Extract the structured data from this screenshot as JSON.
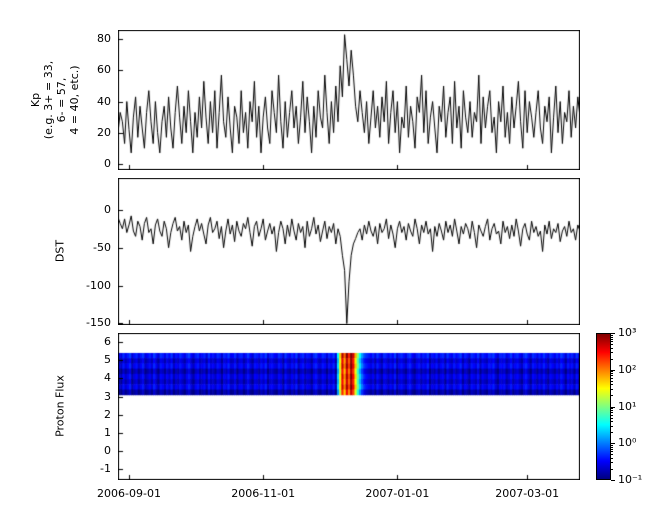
{
  "figure": {
    "background": "#ffffff",
    "frame_color": "#000000",
    "line_color": "#000000",
    "font_color": "#000000"
  },
  "x_axis": {
    "tick_labels": [
      "2006-09-01",
      "2006-11-01",
      "2007-01-01",
      "2007-03-01"
    ],
    "tick_days": [
      5,
      66,
      127,
      186
    ],
    "range_days": [
      0,
      210
    ]
  },
  "chart_data": [
    {
      "id": "kp",
      "type": "line",
      "ylabel": "Kp\n(e.g. 3+ = 33,\n6- = 57,\n4 = 40, etc.)",
      "yticks": [
        0,
        20,
        40,
        60,
        80
      ],
      "ylim": [
        -4,
        86
      ],
      "line_color": "#000000",
      "values": [
        20,
        33,
        27,
        13,
        40,
        22,
        7,
        30,
        43,
        17,
        37,
        23,
        10,
        33,
        47,
        27,
        13,
        40,
        20,
        7,
        27,
        37,
        17,
        43,
        23,
        10,
        33,
        50,
        30,
        13,
        37,
        20,
        47,
        27,
        7,
        33,
        17,
        43,
        23,
        53,
        30,
        13,
        40,
        20,
        47,
        10,
        33,
        57,
        27,
        17,
        43,
        23,
        7,
        37,
        30,
        13,
        47,
        20,
        33,
        10,
        40,
        27,
        53,
        17,
        37,
        7,
        30,
        43,
        23,
        13,
        47,
        33,
        20,
        57,
        27,
        10,
        40,
        17,
        33,
        47,
        23,
        37,
        13,
        30,
        53,
        20,
        43,
        27,
        7,
        37,
        17,
        47,
        30,
        23,
        57,
        33,
        13,
        40,
        20,
        50,
        27,
        63,
        43,
        83,
        67,
        50,
        73,
        57,
        37,
        27,
        47,
        33,
        20,
        40,
        13,
        30,
        47,
        23,
        37,
        17,
        43,
        27,
        53,
        13,
        33,
        47,
        20,
        40,
        7,
        30,
        23,
        50,
        17,
        37,
        27,
        10,
        43,
        33,
        57,
        20,
        47,
        13,
        30,
        40,
        23,
        7,
        37,
        27,
        50,
        17,
        33,
        43,
        13,
        53,
        23,
        37,
        10,
        47,
        30,
        20,
        40,
        17,
        33,
        27,
        57,
        13,
        43,
        23,
        37,
        47,
        20,
        30,
        7,
        40,
        27,
        50,
        17,
        33,
        13,
        43,
        23,
        37,
        53,
        27,
        10,
        47,
        20,
        40,
        30,
        17,
        33,
        47,
        23,
        13,
        37,
        27,
        43,
        7,
        30,
        50,
        20,
        40,
        13,
        33,
        27,
        47,
        17,
        37,
        23,
        43,
        30
      ]
    },
    {
      "id": "dst",
      "type": "line",
      "ylabel": "DST",
      "yticks": [
        0,
        -50,
        -100,
        -150
      ],
      "ylim": [
        -152,
        42
      ],
      "line_color": "#000000",
      "values": [
        -10,
        -18,
        -25,
        -12,
        -30,
        -20,
        -8,
        -28,
        -35,
        -15,
        -22,
        -40,
        -18,
        -10,
        -30,
        -25,
        -45,
        -20,
        -12,
        -28,
        -35,
        -15,
        -25,
        -50,
        -30,
        -18,
        -10,
        -28,
        -22,
        -40,
        -15,
        -30,
        -20,
        -55,
        -35,
        -22,
        -12,
        -28,
        -18,
        -32,
        -45,
        -20,
        -10,
        -30,
        -25,
        -15,
        -38,
        -22,
        -50,
        -28,
        -12,
        -32,
        -20,
        -42,
        -15,
        -28,
        -35,
        -18,
        -25,
        -10,
        -30,
        -48,
        -22,
        -15,
        -35,
        -25,
        -12,
        -40,
        -28,
        -18,
        -32,
        -22,
        -55,
        -30,
        -15,
        -25,
        -45,
        -20,
        -35,
        -12,
        -28,
        -40,
        -18,
        -30,
        -22,
        -50,
        -15,
        -35,
        -25,
        -10,
        -32,
        -20,
        -42,
        -28,
        -15,
        -38,
        -22,
        -30,
        -18,
        -45,
        -25,
        -35,
        -60,
        -80,
        -150,
        -95,
        -60,
        -45,
        -38,
        -30,
        -25,
        -40,
        -20,
        -32,
        -15,
        -28,
        -35,
        -22,
        -45,
        -18,
        -30,
        -25,
        -12,
        -38,
        -20,
        -32,
        -50,
        -25,
        -15,
        -30,
        -22,
        -40,
        -18,
        -28,
        -35,
        -12,
        -25,
        -45,
        -20,
        -30,
        -15,
        -32,
        -25,
        -55,
        -22,
        -35,
        -18,
        -28,
        -40,
        -15,
        -30,
        -20,
        -35,
        -12,
        -28,
        -45,
        -22,
        -32,
        -18,
        -25,
        -38,
        -15,
        -30,
        -50,
        -20,
        -28,
        -35,
        -22,
        -12,
        -40,
        -25,
        -18,
        -32,
        -28,
        -45,
        -15,
        -30,
        -22,
        -38,
        -20,
        -35,
        -12,
        -28,
        -48,
        -25,
        -18,
        -32,
        -40,
        -15,
        -30,
        -22,
        -35,
        -28,
        -55,
        -20,
        -32,
        -15,
        -38,
        -25,
        -30,
        -18,
        -42,
        -28,
        -22,
        -35,
        -15,
        -30,
        -25,
        -40,
        -20,
        -28
      ]
    },
    {
      "id": "proton_flux",
      "type": "heatmap",
      "ylabel": "Proton Flux",
      "yticks": [
        6,
        5,
        4,
        3,
        2,
        1,
        0,
        -1
      ],
      "ylim": [
        -1.6,
        6.5
      ],
      "band_y_range": [
        3.1,
        5.4
      ],
      "channel_multipliers": [
        1.6,
        0.9,
        1.3,
        0.7,
        1.1,
        0.8,
        1.2,
        0.6
      ],
      "values": [
        0.2,
        0.15,
        0.3,
        0.18,
        0.25,
        0.35,
        0.14,
        0.22,
        0.28,
        0.16,
        0.24,
        0.32,
        0.15,
        0.2,
        0.27,
        0.18,
        0.35,
        0.22,
        0.14,
        0.3,
        0.25,
        0.17,
        0.28,
        0.2,
        0.33,
        0.15,
        0.24,
        0.19,
        0.3,
        0.22,
        0.16,
        0.27,
        0.35,
        0.2,
        0.14,
        0.25,
        0.3,
        0.18,
        0.22,
        0.28,
        0.15,
        0.33,
        0.2,
        0.24,
        0.17,
        0.3,
        0.25,
        0.14,
        0.28,
        0.22,
        0.35,
        0.18,
        0.2,
        0.3,
        0.15,
        0.25,
        0.27,
        0.16,
        0.22,
        0.33,
        0.2,
        0.14,
        0.28,
        0.25,
        0.18,
        0.3,
        0.22,
        0.35,
        0.15,
        0.24,
        0.27,
        0.2,
        0.17,
        0.3,
        0.25,
        0.14,
        0.33,
        0.22,
        0.18,
        0.28,
        0.2,
        0.35,
        0.15,
        0.24,
        0.3,
        0.17,
        0.25,
        0.22,
        0.14,
        0.28,
        0.33,
        0.2,
        0.18,
        0.3,
        0.25,
        0.15,
        0.27,
        0.22,
        0.35,
        0.16,
        2,
        30,
        400,
        80,
        600,
        150,
        900,
        300,
        40,
        8,
        2,
        0.8,
        0.4,
        0.3,
        0.25,
        0.2,
        0.28,
        0.16,
        0.33,
        0.22,
        0.15,
        0.3,
        0.25,
        0.18,
        0.27,
        0.2,
        0.35,
        0.14,
        0.24,
        0.3,
        0.22,
        0.16,
        0.28,
        0.33,
        0.2,
        0.15,
        0.25,
        0.3,
        0.18,
        0.27,
        0.22,
        0.35,
        0.14,
        0.24,
        0.2,
        0.3,
        0.17,
        0.25,
        0.28,
        0.15,
        0.33,
        0.22,
        0.18,
        0.3,
        0.2,
        0.25,
        0.35,
        0.16,
        0.27,
        0.22,
        0.14,
        0.3,
        0.25,
        0.2,
        0.33,
        0.15,
        0.28,
        0.22,
        0.18,
        0.3,
        0.25,
        0.35,
        0.2,
        0.14,
        0.27,
        0.24,
        0.3,
        0.16,
        0.22,
        0.33,
        0.18,
        0.25,
        0.3,
        0.2,
        0.15,
        0.28,
        0.35,
        0.22,
        0.14,
        0.3,
        0.25,
        0.17,
        0.27,
        0.2,
        0.33,
        0.22,
        0.15,
        0.3,
        0.24,
        0.18,
        0.28,
        0.2,
        0.35,
        0.25,
        0.14,
        0.3,
        0.22,
        0.27,
        0.16,
        0.33,
        0.2
      ],
      "colorbar": {
        "scale": "log",
        "range": [
          0.1,
          1000
        ],
        "tick_labels": [
          "10³",
          "10²",
          "10¹",
          "10⁰",
          "10⁻¹"
        ],
        "tick_values": [
          1000,
          100,
          10,
          1,
          0.1
        ],
        "colormap": "jet",
        "colormap_stops": [
          {
            "t": 0,
            "color": "#00007f"
          },
          {
            "t": 0.125,
            "color": "#0000ff"
          },
          {
            "t": 0.375,
            "color": "#00ffff"
          },
          {
            "t": 0.625,
            "color": "#ffff00"
          },
          {
            "t": 0.875,
            "color": "#ff0000"
          },
          {
            "t": 1,
            "color": "#7f0000"
          }
        ]
      }
    }
  ]
}
